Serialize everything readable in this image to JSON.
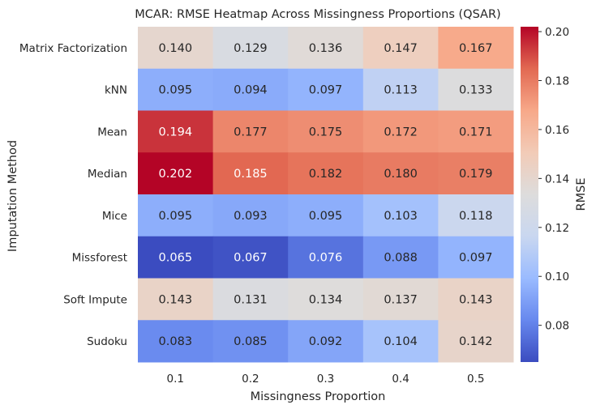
{
  "chart_data": {
    "type": "heatmap",
    "title": "MCAR: RMSE Heatmap Across Missingness Proportions (QSAR)",
    "xlabel": "Missingness Proportion",
    "ylabel": "Imputation Method",
    "x": [
      "0.1",
      "0.2",
      "0.3",
      "0.4",
      "0.5"
    ],
    "y": [
      "Matrix Factorization",
      "kNN",
      "Mean",
      "Median",
      "Mice",
      "Missforest",
      "Soft Impute",
      "Sudoku"
    ],
    "values": [
      [
        0.14,
        0.129,
        0.136,
        0.147,
        0.167
      ],
      [
        0.095,
        0.094,
        0.097,
        0.113,
        0.133
      ],
      [
        0.194,
        0.177,
        0.175,
        0.172,
        0.171
      ],
      [
        0.202,
        0.185,
        0.182,
        0.18,
        0.179
      ],
      [
        0.095,
        0.093,
        0.095,
        0.103,
        0.118
      ],
      [
        0.065,
        0.067,
        0.076,
        0.088,
        0.097
      ],
      [
        0.143,
        0.131,
        0.134,
        0.137,
        0.143
      ],
      [
        0.083,
        0.085,
        0.092,
        0.104,
        0.142
      ]
    ],
    "value_format": "0.000",
    "colorbar": {
      "label": "RMSE",
      "range": [
        0.065,
        0.202
      ],
      "ticks": [
        "0.08",
        "0.10",
        "0.12",
        "0.14",
        "0.16",
        "0.18",
        "0.20"
      ],
      "colormap": "coolwarm",
      "colors": [
        "#3b4cc0",
        "#6788ee",
        "#9abbff",
        "#c9d7f0",
        "#dddcdc",
        "#f2cbb7",
        "#f7a889",
        "#e26952",
        "#b40426"
      ]
    },
    "grid": false,
    "legend": "colorbar-right"
  }
}
